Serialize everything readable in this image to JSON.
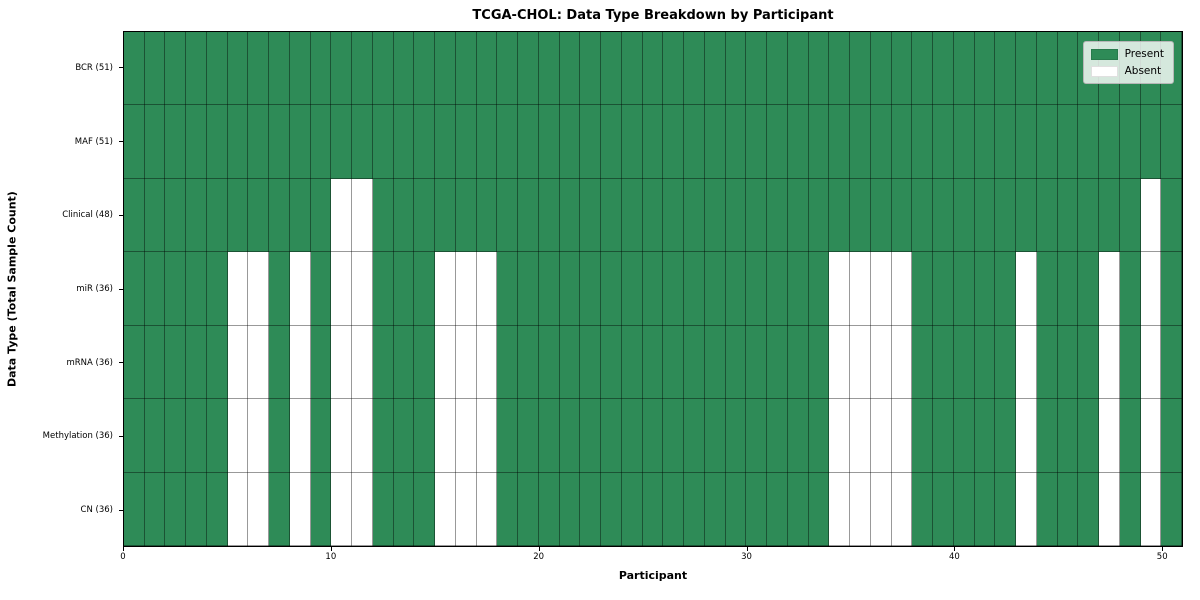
{
  "chart_data": {
    "type": "heatmap",
    "title": "TCGA-CHOL: Data Type Breakdown by Participant",
    "xlabel": "Participant",
    "ylabel": "Data Type (Total Sample Count)",
    "x_tick_values": [
      0,
      10,
      20,
      30,
      40,
      50
    ],
    "n_participants": 51,
    "x_range": [
      0,
      51
    ],
    "grid": true,
    "legend_position": "upper right",
    "colors": {
      "present": "#2e8b57",
      "absent": "#ffffff",
      "gridline": "rgba(0,0,0,0.40)",
      "frame": "#000000"
    },
    "rows": [
      {
        "label": "BCR (51)",
        "present_count": 51,
        "absent_participants": []
      },
      {
        "label": "MAF (51)",
        "present_count": 51,
        "absent_participants": []
      },
      {
        "label": "Clinical (48)",
        "present_count": 48,
        "absent_participants": [
          10,
          11,
          49
        ]
      },
      {
        "label": "miR (36)",
        "present_count": 36,
        "absent_participants": [
          5,
          6,
          8,
          10,
          11,
          15,
          16,
          17,
          34,
          35,
          36,
          37,
          43,
          47,
          49
        ]
      },
      {
        "label": "mRNA (36)",
        "present_count": 36,
        "absent_participants": [
          5,
          6,
          8,
          10,
          11,
          15,
          16,
          17,
          34,
          35,
          36,
          37,
          43,
          47,
          49
        ]
      },
      {
        "label": "Methylation (36)",
        "present_count": 36,
        "absent_participants": [
          5,
          6,
          8,
          10,
          11,
          15,
          16,
          17,
          34,
          35,
          36,
          37,
          43,
          47,
          49
        ]
      },
      {
        "label": "CN (36)",
        "present_count": 36,
        "absent_participants": [
          5,
          6,
          8,
          10,
          11,
          15,
          16,
          17,
          34,
          35,
          36,
          37,
          43,
          47,
          49
        ]
      }
    ],
    "legend": [
      {
        "label": "Present",
        "color": "#2e8b57"
      },
      {
        "label": "Absent",
        "color": "#ffffff"
      }
    ]
  }
}
